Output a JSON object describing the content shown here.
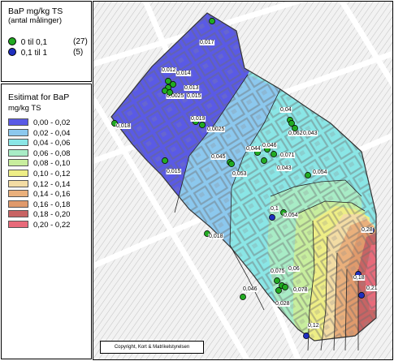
{
  "point_legend": {
    "title_line1": "BaP mg/kg TS",
    "title_line2": "(antal målinger)",
    "items": [
      {
        "range": "0    til 0,1",
        "count": "(27)",
        "color": "#22aa22"
      },
      {
        "range": "0,1 til 1",
        "count": "(5)",
        "color": "#1f2fbf"
      }
    ]
  },
  "estimate_legend": {
    "title_line1": "Esitimat for BaP",
    "title_line2": "mg/kg TS",
    "classes": [
      {
        "label": "0,00 - 0,02",
        "color": "#5a5ae6"
      },
      {
        "label": "0,02 - 0,04",
        "color": "#8cc8ee"
      },
      {
        "label": "0,04 - 0,06",
        "color": "#8ae6e6"
      },
      {
        "label": "0,06 - 0,08",
        "color": "#a8ecc6"
      },
      {
        "label": "0,08 - 0,10",
        "color": "#c8ee9e"
      },
      {
        "label": "0,10 - 0,12",
        "color": "#eeee86"
      },
      {
        "label": "0,12 - 0,14",
        "color": "#f3dca4"
      },
      {
        "label": "0,14 - 0,16",
        "color": "#eab07c"
      },
      {
        "label": "0,16 - 0,18",
        "color": "#e09a6c"
      },
      {
        "label": "0,18 - 0,20",
        "color": "#c86464"
      },
      {
        "label": "0,20 - 0,22",
        "color": "#e86a7a"
      }
    ]
  },
  "map": {
    "copyright": "Copyright, Kort & Matrikelstyrelsen",
    "samples": [
      {
        "value": "0,017",
        "cls": 0
      },
      {
        "value": "0,012",
        "cls": 0
      },
      {
        "value": "0,014",
        "cls": 0
      },
      {
        "value": "0,013",
        "cls": 0
      },
      {
        "value": "0,0025",
        "cls": 0
      },
      {
        "value": "0,015",
        "cls": 0
      },
      {
        "value": "0,018",
        "cls": 0
      },
      {
        "value": "0,019",
        "cls": 0
      },
      {
        "value": "0,0025",
        "cls": 0
      },
      {
        "value": "0,015",
        "cls": 0
      },
      {
        "value": "0,045",
        "cls": 0
      },
      {
        "value": "0,053",
        "cls": 0
      },
      {
        "value": "0,044",
        "cls": 0
      },
      {
        "value": "0,046",
        "cls": 0
      },
      {
        "value": "0,071",
        "cls": 0
      },
      {
        "value": "0,043",
        "cls": 0
      },
      {
        "value": "0,04",
        "cls": 0
      },
      {
        "value": "0,062",
        "cls": 0
      },
      {
        "value": "0,043",
        "cls": 0
      },
      {
        "value": "0,054",
        "cls": 0
      },
      {
        "value": "0,1",
        "cls": 1
      },
      {
        "value": "0,054",
        "cls": 0
      },
      {
        "value": "0,018",
        "cls": 0
      },
      {
        "value": "0,075",
        "cls": 0
      },
      {
        "value": "0,06",
        "cls": 0
      },
      {
        "value": "0,078",
        "cls": 0
      },
      {
        "value": "0,028",
        "cls": 0
      },
      {
        "value": "0,046",
        "cls": 0
      },
      {
        "value": "0,28",
        "cls": 1
      },
      {
        "value": "0,18",
        "cls": 1
      },
      {
        "value": "0,21",
        "cls": 1
      },
      {
        "value": "0,12",
        "cls": 1
      }
    ]
  }
}
